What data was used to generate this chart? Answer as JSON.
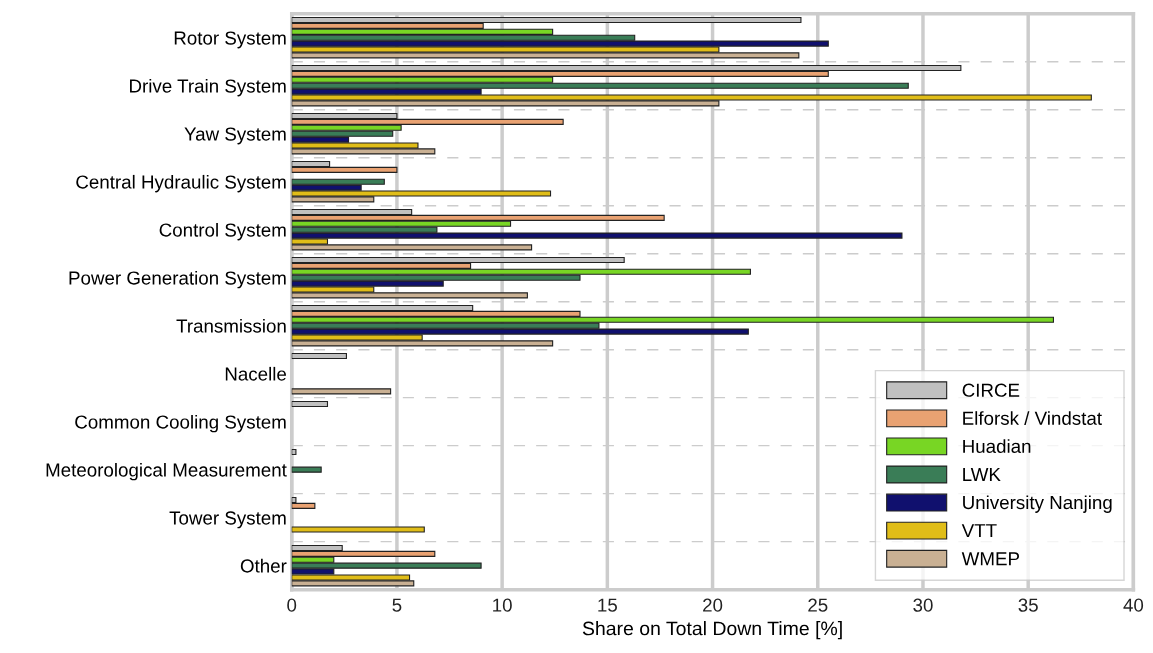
{
  "chart_data": {
    "type": "bar",
    "orientation": "horizontal",
    "xlabel": "Share on Total Down Time [%]",
    "categories": [
      "Rotor System",
      "Drive Train System",
      "Yaw System",
      "Central Hydraulic System",
      "Control System",
      "Power Generation System",
      "Transmission",
      "Nacelle",
      "Common Cooling System",
      "Meteorological Measurement",
      "Tower System",
      "Other"
    ],
    "series": [
      {
        "name": "CIRCE",
        "color": "#c0c0c0",
        "values": [
          24.2,
          31.8,
          5.0,
          1.8,
          5.7,
          15.8,
          8.6,
          2.6,
          1.7,
          0.2,
          0.2,
          2.4
        ]
      },
      {
        "name": "Elforsk / Vindstat",
        "color": "#e9a272",
        "values": [
          9.1,
          25.5,
          12.9,
          5.0,
          17.7,
          8.5,
          13.7,
          null,
          null,
          null,
          1.1,
          6.8
        ]
      },
      {
        "name": "Huadian",
        "color": "#78d624",
        "values": [
          12.4,
          12.4,
          5.2,
          null,
          10.4,
          21.8,
          36.2,
          null,
          null,
          null,
          null,
          2.0
        ]
      },
      {
        "name": "LWK",
        "color": "#3a7d57",
        "values": [
          16.3,
          29.3,
          4.8,
          4.4,
          6.9,
          13.7,
          14.6,
          null,
          null,
          1.4,
          null,
          9.0
        ]
      },
      {
        "name": "University Nanjing",
        "color": "#10106e",
        "values": [
          25.5,
          9.0,
          2.7,
          3.3,
          29.0,
          7.2,
          21.7,
          null,
          null,
          null,
          null,
          2.0
        ]
      },
      {
        "name": "VTT",
        "color": "#e0bd18",
        "values": [
          20.3,
          38.0,
          6.0,
          12.3,
          1.7,
          3.9,
          6.2,
          null,
          null,
          null,
          6.3,
          5.6
        ]
      },
      {
        "name": "WMEP",
        "color": "#c9b093",
        "values": [
          24.1,
          20.3,
          6.8,
          3.9,
          11.4,
          11.2,
          12.4,
          4.7,
          null,
          null,
          null,
          5.8
        ]
      }
    ],
    "xlim": [
      0,
      40
    ],
    "xticks": [
      0,
      5,
      10,
      15,
      20,
      25,
      30,
      35,
      40
    ],
    "grid": true,
    "legend": "bottom right"
  }
}
